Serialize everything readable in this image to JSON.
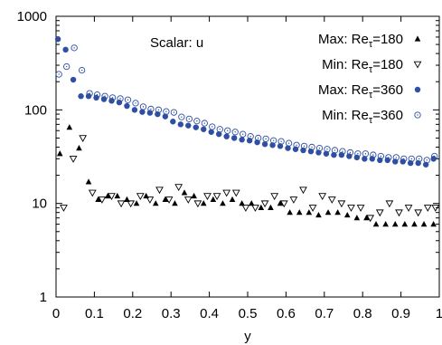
{
  "chart_data": {
    "type": "scatter",
    "title": "",
    "annotation": "Scalar:  u",
    "xlabel": "y",
    "ylabel": "",
    "xlim": [
      0,
      1
    ],
    "ylim": [
      1,
      1000
    ],
    "yscale": "log",
    "grid": false,
    "legend_position": "top-right",
    "x_ticks": [
      "0",
      "0.1",
      "0.2",
      "0.3",
      "0.4",
      "0.5",
      "0.6",
      "0.7",
      "0.8",
      "0.9",
      "1"
    ],
    "y_ticks": [
      "1",
      "10",
      "100",
      "1000"
    ],
    "series": [
      {
        "name": "Max:  Reτ=180",
        "marker": "triangle-filled",
        "color": "#000000",
        "x": [
          0.01,
          0.035,
          0.06,
          0.085,
          0.11,
          0.135,
          0.16,
          0.185,
          0.21,
          0.235,
          0.26,
          0.285,
          0.31,
          0.335,
          0.36,
          0.385,
          0.41,
          0.435,
          0.46,
          0.485,
          0.51,
          0.535,
          0.56,
          0.585,
          0.61,
          0.635,
          0.66,
          0.685,
          0.71,
          0.735,
          0.76,
          0.785,
          0.81,
          0.835,
          0.86,
          0.885,
          0.91,
          0.935,
          0.96,
          0.985
        ],
        "y": [
          34,
          65,
          39,
          17,
          11,
          12,
          12,
          11,
          10,
          12,
          10,
          11,
          10,
          13,
          12,
          10,
          11,
          10,
          11,
          10,
          10,
          9,
          9,
          10,
          8,
          8,
          8,
          7.5,
          8,
          8,
          7.5,
          7,
          7,
          6,
          6,
          6,
          6,
          6,
          6,
          6
        ]
      },
      {
        "name": "Min:  Reτ=180",
        "marker": "triangle-open",
        "color": "#000000",
        "x": [
          0.02,
          0.045,
          0.07,
          0.095,
          0.12,
          0.145,
          0.17,
          0.195,
          0.22,
          0.245,
          0.27,
          0.295,
          0.32,
          0.345,
          0.37,
          0.395,
          0.42,
          0.445,
          0.47,
          0.495,
          0.52,
          0.545,
          0.57,
          0.595,
          0.62,
          0.645,
          0.67,
          0.695,
          0.72,
          0.745,
          0.77,
          0.795,
          0.82,
          0.845,
          0.87,
          0.895,
          0.92,
          0.945,
          0.97,
          0.99
        ],
        "y": [
          9,
          30,
          50,
          13,
          11,
          12,
          10,
          10,
          12,
          11,
          14,
          11,
          15,
          11,
          10,
          12,
          12,
          13,
          13,
          9,
          9,
          10,
          12,
          10,
          11,
          14,
          9,
          12,
          11,
          10,
          9,
          9,
          7,
          8,
          10,
          8,
          9,
          8,
          9,
          9
        ]
      },
      {
        "name": "Max:  Reτ=360",
        "marker": "circle-filled",
        "color": "#2e4fa3",
        "x": [
          0.005,
          0.025,
          0.045,
          0.065,
          0.085,
          0.105,
          0.125,
          0.145,
          0.165,
          0.185,
          0.205,
          0.225,
          0.245,
          0.265,
          0.285,
          0.305,
          0.325,
          0.345,
          0.365,
          0.385,
          0.405,
          0.425,
          0.445,
          0.465,
          0.485,
          0.505,
          0.525,
          0.545,
          0.565,
          0.585,
          0.605,
          0.625,
          0.645,
          0.665,
          0.685,
          0.705,
          0.725,
          0.745,
          0.765,
          0.785,
          0.805,
          0.825,
          0.845,
          0.865,
          0.885,
          0.905,
          0.925,
          0.945,
          0.965,
          0.985
        ],
        "y": [
          570,
          440,
          210,
          140,
          140,
          135,
          130,
          125,
          120,
          110,
          100,
          95,
          93,
          90,
          85,
          75,
          70,
          68,
          65,
          62,
          58,
          55,
          52,
          50,
          48,
          47,
          45,
          43,
          42,
          41,
          39,
          38,
          37,
          36,
          35,
          34,
          33,
          33,
          32,
          31,
          30,
          30,
          29,
          29,
          28,
          28,
          27,
          27,
          26,
          30
        ]
      },
      {
        "name": "Min:  Reτ=360",
        "marker": "circle-open",
        "color": "#2e4fa3",
        "x": [
          0.0075,
          0.0275,
          0.0475,
          0.0675,
          0.0875,
          0.1075,
          0.1275,
          0.1475,
          0.1675,
          0.1875,
          0.2075,
          0.2275,
          0.2475,
          0.2675,
          0.2875,
          0.3075,
          0.3275,
          0.3475,
          0.3675,
          0.3875,
          0.4075,
          0.4275,
          0.4475,
          0.4675,
          0.4875,
          0.5075,
          0.5275,
          0.5475,
          0.5675,
          0.5875,
          0.6075,
          0.6275,
          0.6475,
          0.6675,
          0.6875,
          0.7075,
          0.7275,
          0.7475,
          0.7675,
          0.7875,
          0.8075,
          0.8275,
          0.8475,
          0.8675,
          0.8875,
          0.9075,
          0.9275,
          0.9475,
          0.9675,
          0.9875
        ],
        "y": [
          240,
          290,
          460,
          265,
          150,
          145,
          140,
          135,
          132,
          128,
          118,
          108,
          102,
          100,
          96,
          94,
          84,
          80,
          76,
          72,
          66,
          62,
          60,
          58,
          55,
          52,
          50,
          49,
          47,
          46,
          44,
          42,
          41,
          40,
          39,
          38,
          37,
          36,
          35,
          34,
          34,
          33,
          32,
          31,
          31,
          30,
          30,
          30,
          29,
          32
        ]
      }
    ]
  }
}
